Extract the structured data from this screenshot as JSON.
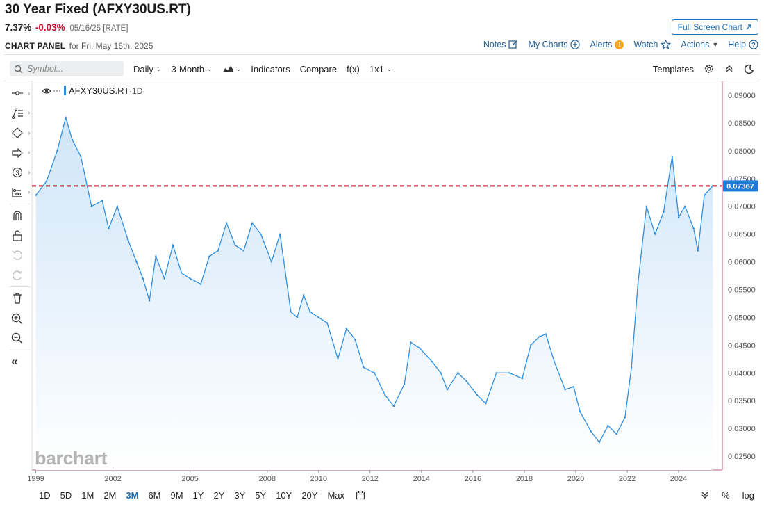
{
  "header": {
    "title": "30 Year Fixed (AFXY30US.RT)",
    "last": "7.37%",
    "change": "-0.03%",
    "meta": "05/16/25 [RATE]",
    "fullscreen_label": "Full Screen Chart"
  },
  "panel": {
    "label": "CHART PANEL",
    "date": "for Fri, May 16th, 2025",
    "menu": {
      "notes": "Notes",
      "my_charts": "My Charts",
      "alerts": "Alerts",
      "watch": "Watch",
      "actions": "Actions",
      "help": "Help"
    }
  },
  "toolbar": {
    "search_placeholder": "Symbol...",
    "interval": "Daily",
    "period": "3-Month",
    "indicators": "Indicators",
    "compare": "Compare",
    "fx": "f(x)",
    "layout": "1x1",
    "templates": "Templates"
  },
  "sidebar_icons": [
    "crosshair-icon",
    "lines-icon",
    "shapes-icon",
    "arrow-icon",
    "number-icon",
    "measure-icon",
    "magnet-icon",
    "lock-icon",
    "undo-icon",
    "redo-icon",
    "trash-icon",
    "zoom-in-icon",
    "zoom-out-icon",
    "collapse-icon"
  ],
  "legend": {
    "symbol": "AFXY30US.RT",
    "interval": "·1D·"
  },
  "watermark": "barchart",
  "colors": {
    "line": "#2f8fe0",
    "area_top": "#cfe5f8",
    "area_bottom": "#ffffff",
    "ref_line": "#c8102e",
    "price_tag": "#1f7bd6",
    "change_negative": "#c8102e",
    "link": "#1f5f99"
  },
  "bottom_bar": {
    "ranges": [
      "1D",
      "5D",
      "1M",
      "2M",
      "3M",
      "6M",
      "9M",
      "1Y",
      "2Y",
      "3Y",
      "5Y",
      "10Y",
      "20Y",
      "Max"
    ],
    "active_range": "3M",
    "percent": "%",
    "log": "log"
  },
  "chart_data": {
    "type": "area",
    "series": [
      {
        "name": "AFXY30US.RT",
        "x": [
          "1999-01",
          "1999-06",
          "1999-11",
          "2000-03",
          "2000-06",
          "2000-10",
          "2001-03",
          "2001-08",
          "2001-11",
          "2002-03",
          "2002-08",
          "2002-12",
          "2003-03",
          "2003-06",
          "2003-09",
          "2004-01",
          "2004-05",
          "2004-09",
          "2005-01",
          "2005-06",
          "2005-10",
          "2006-02",
          "2006-06",
          "2006-10",
          "2007-02",
          "2007-06",
          "2007-10",
          "2008-03",
          "2008-07",
          "2008-12",
          "2009-03",
          "2009-06",
          "2009-09",
          "2010-01",
          "2010-05",
          "2010-10",
          "2011-02",
          "2011-06",
          "2011-10",
          "2012-03",
          "2012-08",
          "2012-12",
          "2013-05",
          "2013-08",
          "2013-12",
          "2014-06",
          "2014-10",
          "2015-01",
          "2015-06",
          "2015-10",
          "2016-03",
          "2016-07",
          "2016-12",
          "2017-06",
          "2017-12",
          "2018-04",
          "2018-08",
          "2018-11",
          "2019-03",
          "2019-08",
          "2019-12",
          "2020-03",
          "2020-08",
          "2020-12",
          "2021-04",
          "2021-08",
          "2021-12",
          "2022-03",
          "2022-06",
          "2022-10",
          "2023-02",
          "2023-06",
          "2023-10",
          "2024-01",
          "2024-04",
          "2024-08",
          "2024-10",
          "2025-01",
          "2025-05"
        ],
        "y": [
          0.072,
          0.0745,
          0.08,
          0.086,
          0.082,
          0.079,
          0.07,
          0.071,
          0.066,
          0.07,
          0.064,
          0.06,
          0.057,
          0.053,
          0.061,
          0.057,
          0.063,
          0.058,
          0.057,
          0.056,
          0.061,
          0.062,
          0.067,
          0.063,
          0.062,
          0.067,
          0.065,
          0.06,
          0.065,
          0.051,
          0.05,
          0.054,
          0.051,
          0.05,
          0.049,
          0.0425,
          0.048,
          0.046,
          0.041,
          0.04,
          0.036,
          0.034,
          0.038,
          0.0455,
          0.0445,
          0.042,
          0.04,
          0.037,
          0.04,
          0.0385,
          0.036,
          0.0345,
          0.04,
          0.04,
          0.039,
          0.045,
          0.0465,
          0.047,
          0.042,
          0.037,
          0.0375,
          0.033,
          0.0295,
          0.0275,
          0.0305,
          0.029,
          0.032,
          0.041,
          0.056,
          0.07,
          0.065,
          0.069,
          0.079,
          0.068,
          0.07,
          0.066,
          0.062,
          0.072,
          0.0737
        ]
      }
    ],
    "ylim": [
      0.0225,
      0.0925
    ],
    "yticks": [
      "0.02500",
      "0.03000",
      "0.03500",
      "0.04000",
      "0.04500",
      "0.05000",
      "0.05500",
      "0.06000",
      "0.06500",
      "0.07000",
      "0.07500",
      "0.08000",
      "0.08500",
      "0.09000"
    ],
    "xticks": [
      "1999",
      "2002",
      "2005",
      "2008",
      "2010",
      "2012",
      "2014",
      "2016",
      "2018",
      "2020",
      "2022",
      "2024"
    ],
    "last_value": 0.07367,
    "last_value_label": "0.07367",
    "grid": false,
    "legend": "top-left"
  }
}
